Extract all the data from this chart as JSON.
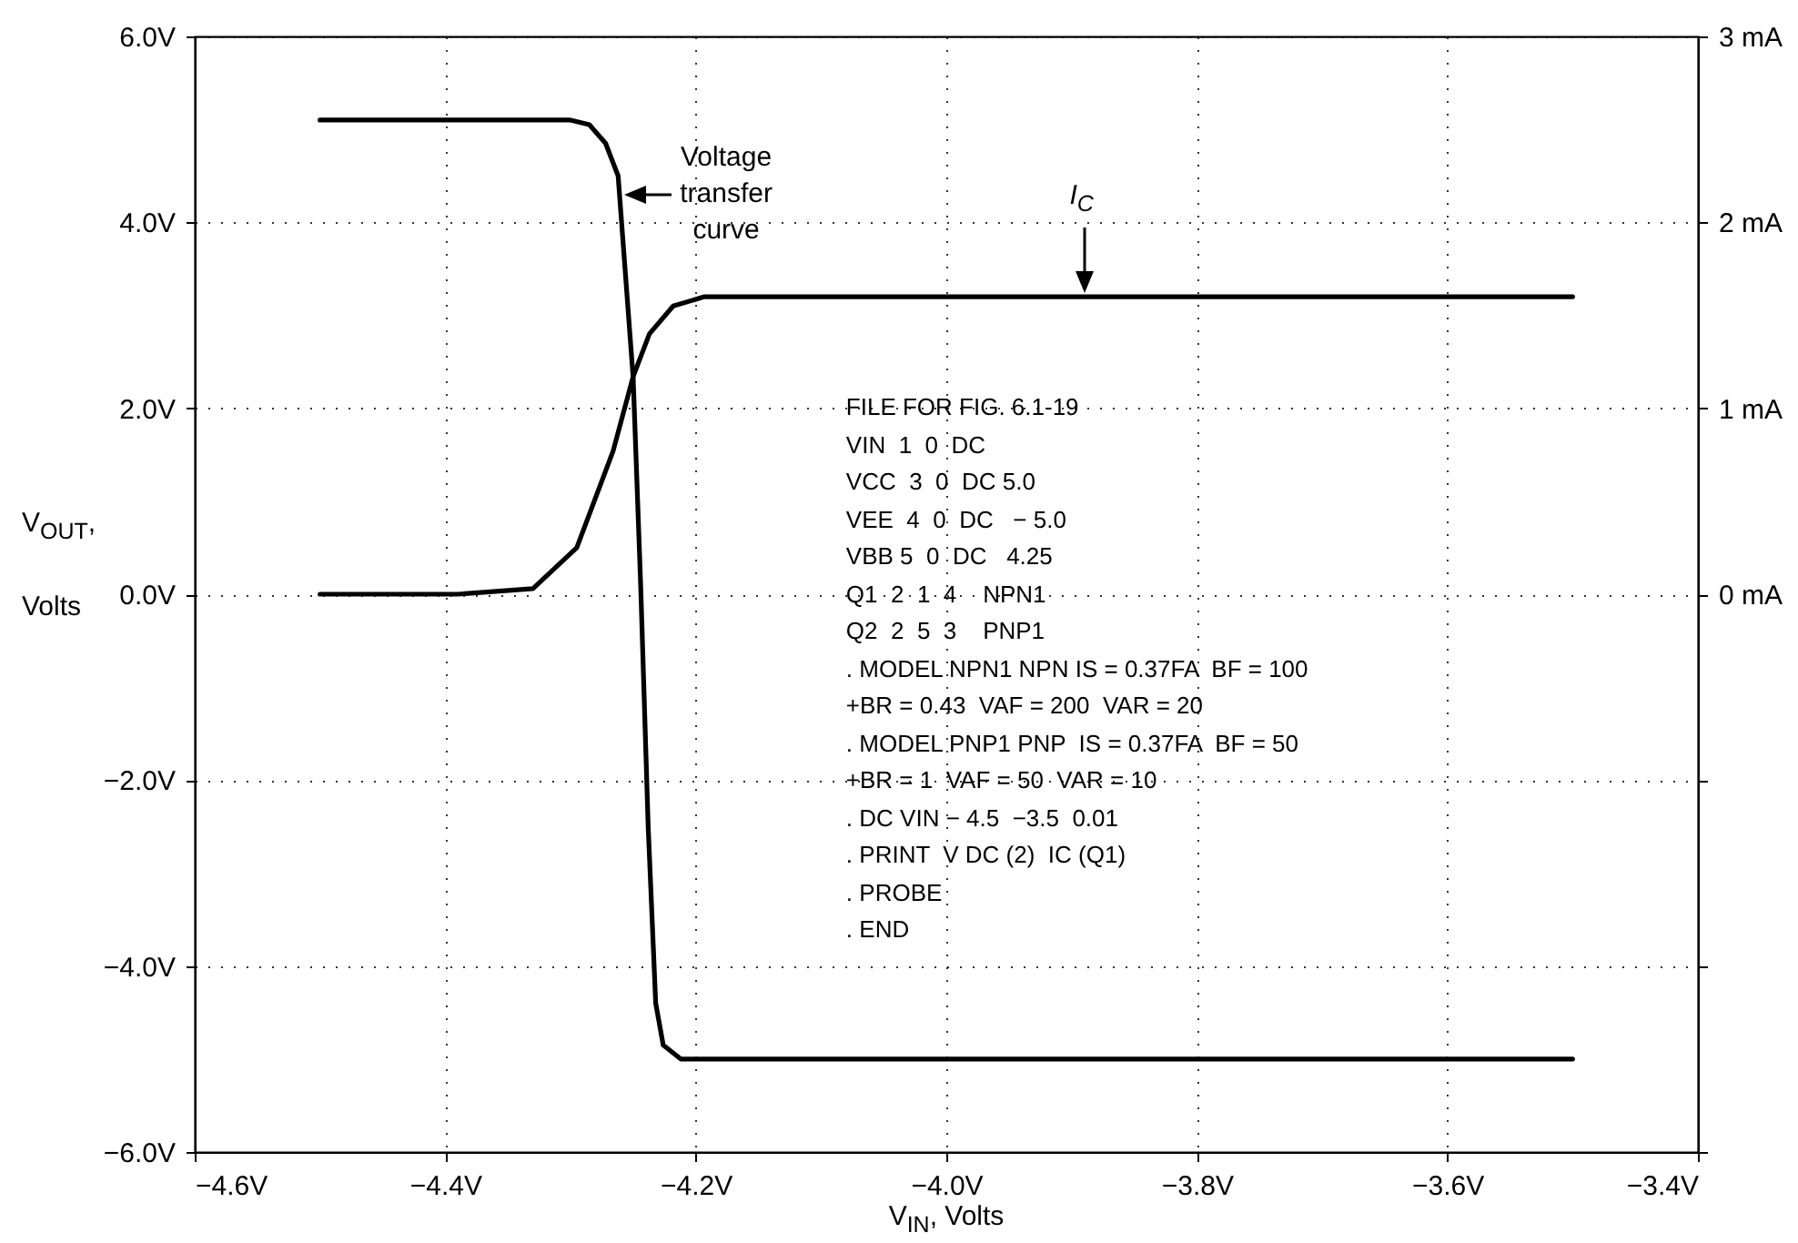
{
  "chart_data": {
    "type": "line",
    "xlabel": "V$_{IN}$, Volts",
    "ylabel": "V$_{OUT}$, Volts",
    "series": [
      {
        "color": "#000000",
        "x": [
          -4.5,
          -4.3,
          -4.285,
          -4.272,
          -4.262,
          -4.25,
          -4.244,
          -4.238,
          -4.232,
          -4.226,
          -4.212,
          -3.5
        ],
        "values": [
          5.1,
          5.1,
          5.05,
          4.85,
          4.5,
          2.33,
          0.1,
          -2.5,
          -4.4,
          -4.85,
          -5.0,
          -5.0
        ]
      },
      {
        "color": "#000000",
        "axis": "y2",
        "x": [
          -4.5,
          -4.39,
          -4.33,
          -4.295,
          -4.266,
          -4.25,
          -4.237,
          -4.218,
          -4.193,
          -3.5
        ],
        "values": [
          0,
          0,
          0.03,
          0.25,
          0.77,
          1.17,
          1.4,
          1.55,
          1.6,
          1.6
        ]
      }
    ],
    "xlim": [
      -4.6,
      -3.4
    ],
    "xticks": [
      {
        "value": -4.6,
        "label": "−4.6V"
      },
      {
        "value": -4.4,
        "label": "−4.4V"
      },
      {
        "value": -4.2,
        "label": "−4.2V"
      },
      {
        "value": -4.0,
        "label": "−4.0V"
      },
      {
        "value": -3.8,
        "label": "−3.8V"
      },
      {
        "value": -3.6,
        "label": "−3.6V"
      },
      {
        "value": -3.4,
        "label": "−3.4V"
      }
    ],
    "ylim": [
      -6,
      6
    ],
    "yticks": [
      {
        "value": -6,
        "label": "−6.0V"
      },
      {
        "value": -4,
        "label": "−4.0V"
      },
      {
        "value": -2,
        "label": "−2.0V"
      },
      {
        "value": 0,
        "label": "0.0V"
      },
      {
        "value": 2,
        "label": "2.0V"
      },
      {
        "value": 4,
        "label": "4.0V"
      },
      {
        "value": 6,
        "label": "6.0V"
      }
    ],
    "y2lim": [
      -3,
      3
    ],
    "y2ticks": [
      {
        "value": -3,
        "label": null
      },
      {
        "value": -2,
        "label": null
      },
      {
        "value": -1,
        "label": null
      },
      {
        "value": 0,
        "label": "0 mA"
      },
      {
        "value": 1,
        "label": "1 mA"
      },
      {
        "value": 2,
        "label": "2 mA"
      },
      {
        "value": 3,
        "label": "3 mA"
      }
    ],
    "grid": true,
    "line_style": "solid",
    "marker": "none",
    "annotations": [
      {
        "text": "Voltage transfer curve",
        "x": -4.26,
        "y": 4.3
      },
      {
        "text": "I$_{C}$",
        "x": -3.89,
        "y": 3.2
      },
      "FILE FOR FIG. 6.1-19",
      "VIN  1  0  DC",
      "VCC  3  0  DC 5.0",
      "VEE  4  0  DC   − 5.0",
      "VBB 5  0  DC   4.25",
      "Q1  2  1  4    NPN1",
      "Q2  2  5  3    PNP1",
      ". MODEL NPN1 NPN IS = 0.37FA  BF = 100",
      "+BR = 0.43  VAF = 200  VAR = 20",
      ". MODEL PNP1 PNP  IS = 0.37FA  BF = 50",
      "+BR = 1  VAF = 50  VAR = 10",
      ". DC VIN − 4.5  −3.5  0.01",
      ". PRINT  V DC (2)  IC (Q1)",
      ". PROBE",
      ". END"
    ]
  }
}
